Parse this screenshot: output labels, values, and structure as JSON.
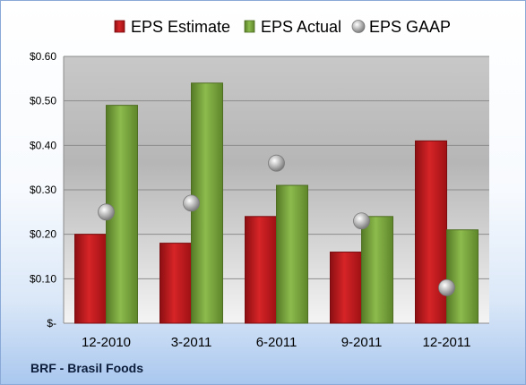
{
  "company_label": "BRF - Brasil Foods",
  "chart_data": {
    "type": "bar",
    "categories": [
      "12-2010",
      "3-2011",
      "6-2011",
      "9-2011",
      "12-2011"
    ],
    "series": [
      {
        "name": "EPS Estimate",
        "kind": "bar",
        "color": "#c0191c",
        "values": [
          0.2,
          0.18,
          0.24,
          0.16,
          0.41
        ]
      },
      {
        "name": "EPS Actual",
        "kind": "bar",
        "color": "#77a33a",
        "values": [
          0.49,
          0.54,
          0.31,
          0.24,
          0.21
        ]
      },
      {
        "name": "EPS GAAP",
        "kind": "marker",
        "color": "#a7a7a7",
        "values": [
          0.25,
          0.27,
          0.36,
          0.23,
          0.08
        ]
      }
    ],
    "yticks": [
      0,
      0.1,
      0.2,
      0.3,
      0.4,
      0.5,
      0.6
    ],
    "ytick_labels": [
      "$-",
      "$0.10",
      "$0.20",
      "$0.30",
      "$0.40",
      "$0.50",
      "$0.60"
    ],
    "ylim": [
      0,
      0.6
    ],
    "grid": true,
    "legend_position": "top"
  }
}
